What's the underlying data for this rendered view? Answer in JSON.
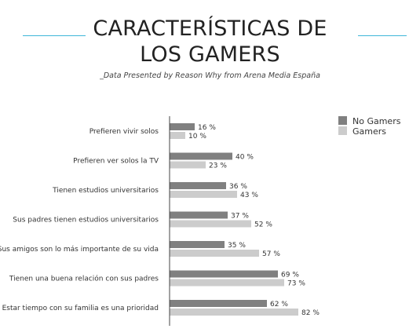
{
  "header": {
    "title_line1": "CARACTERÍSTICAS DE",
    "title_line2": "LOS GAMERS",
    "subtitle": "_Data Presented by Reason Why from Arena Media España"
  },
  "colors": {
    "rule": "#3fb6d8",
    "no_gamers": "#808080",
    "gamers": "#cccccc",
    "axis": "#444444"
  },
  "chart_data": {
    "type": "bar",
    "orientation": "horizontal",
    "title": "CARACTERÍSTICAS DE LOS GAMERS",
    "subtitle": "_Data Presented by Reason Why from Arena Media España",
    "categories": [
      "Prefieren vivir solos",
      "Prefieren ver solos la TV",
      "Tienen estudios universitarios",
      "Sus padres tienen estudios universitarios",
      "Sus amigos son lo más importante de su vida",
      "Tienen una buena relación con sus padres",
      "Estar tiempo con su familia es una prioridad"
    ],
    "series": [
      {
        "name": "No Gamers",
        "values": [
          16,
          40,
          36,
          37,
          35,
          69,
          62
        ],
        "labels": [
          "16 %",
          "40 %",
          "36 %",
          "37 %",
          "35 %",
          "69 %",
          "62 %"
        ]
      },
      {
        "name": "Gamers",
        "values": [
          10,
          23,
          43,
          52,
          57,
          73,
          82
        ],
        "labels": [
          "10 %",
          "23 %",
          "43 %",
          "52 %",
          "57 %",
          "73 %",
          "82 %"
        ]
      }
    ],
    "xlim": [
      0,
      100
    ],
    "grid": false,
    "legend": "top-right"
  }
}
